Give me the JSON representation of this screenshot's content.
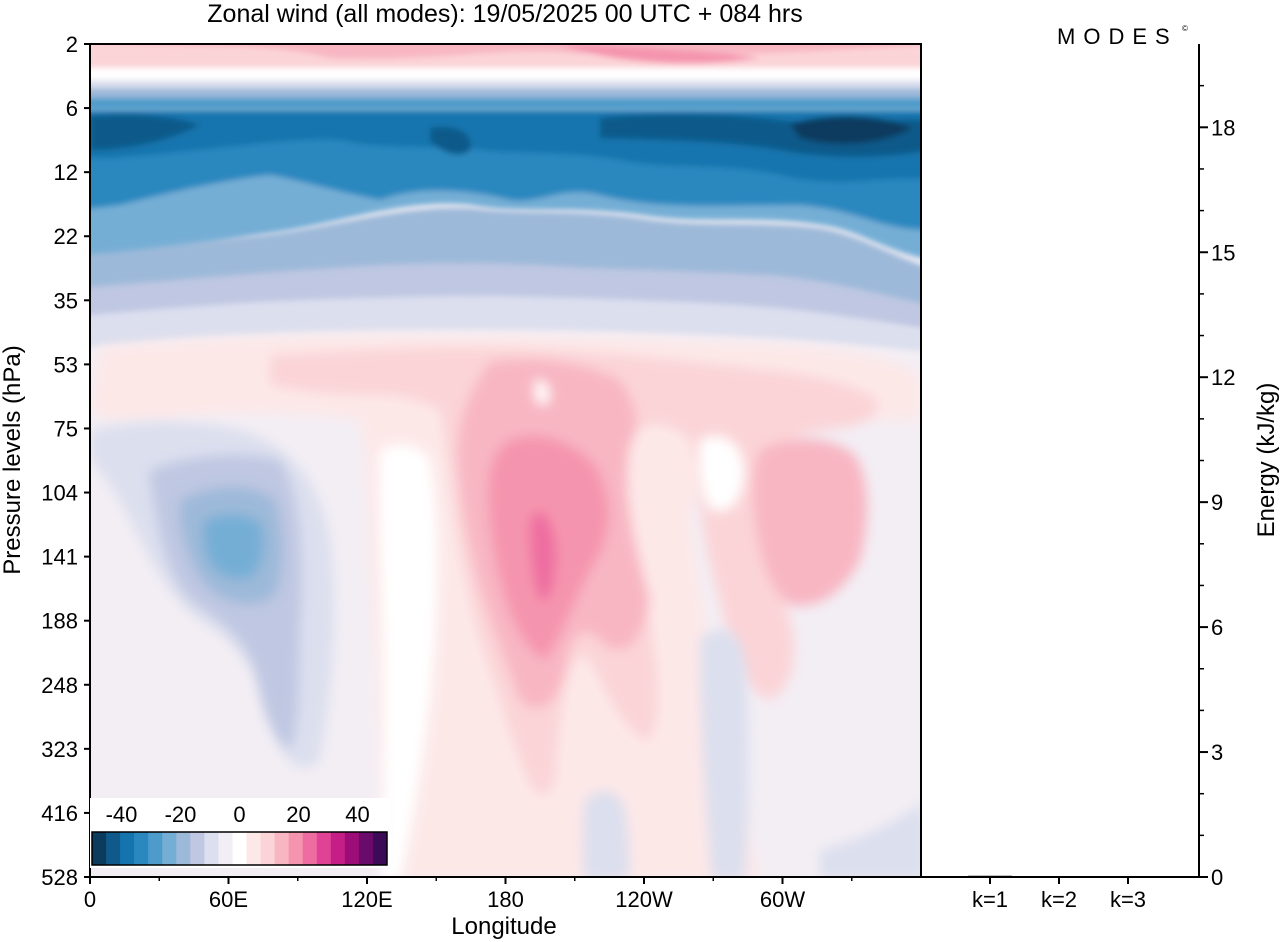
{
  "header": {
    "title": "Zonal wind (all modes):  19/05/2025  00 UTC  + 084 hrs",
    "logo_text": "MODES",
    "logo_mark": "©"
  },
  "chart_data": [
    {
      "type": "heatmap",
      "variable": "zonal wind",
      "title": "Zonal wind (all modes):  19/05/2025  00 UTC  + 084 hrs",
      "xlabel": "Longitude",
      "ylabel": "Pressure levels (hPa)",
      "x_ticks": [
        "0",
        "60E",
        "120E",
        "180",
        "120W",
        "60W"
      ],
      "x_tick_degrees_east": [
        0,
        60,
        120,
        180,
        240,
        300
      ],
      "xlim_degrees_east": [
        0,
        360
      ],
      "y_ticks": [
        "2",
        "6",
        "12",
        "22",
        "35",
        "53",
        "75",
        "104",
        "141",
        "188",
        "248",
        "323",
        "416",
        "528"
      ],
      "colorbar": {
        "labels": [
          "-40",
          "-20",
          "0",
          "20",
          "40"
        ],
        "levels": [
          -45,
          -40,
          -35,
          -30,
          -25,
          -20,
          -15,
          -10,
          -5,
          0,
          5,
          10,
          15,
          20,
          25,
          30,
          35,
          40,
          45
        ],
        "colors": [
          "#0d3b5e",
          "#0f5a8a",
          "#1574ae",
          "#2a88bf",
          "#4d9bcb",
          "#75aed5",
          "#9db9d9",
          "#bfc7e2",
          "#dcdfee",
          "#f1eef5",
          "#ffffff",
          "#fde8e8",
          "#fbd4d7",
          "#f8b6c2",
          "#f594ae",
          "#ee6da0",
          "#e04395",
          "#c51e86",
          "#9c0d78",
          "#6a0a6a",
          "#3d0a57"
        ]
      },
      "features": [
        {
          "name": "westward jet core",
          "pressure_hPa": [
            6,
            16
          ],
          "u_ms": -40
        },
        {
          "name": "eastward upper layer",
          "pressure_hPa": [
            2,
            3
          ],
          "u_ms": 15
        },
        {
          "name": "dateline eastward max",
          "lon": "180-165W",
          "pressure_hPa": 141,
          "u_ms": 25
        },
        {
          "name": "western easterly min",
          "lon": "30E-60E",
          "pressure_hPa": 141,
          "u_ms": -25
        }
      ]
    },
    {
      "type": "bar",
      "title": "",
      "xlabel": "",
      "ylabel": "Energy (kJ/kg)",
      "categories": [
        "k=1",
        "k=2",
        "k=3"
      ],
      "values": [
        0.03,
        0.02,
        0.02
      ],
      "ylim": [
        0,
        20
      ],
      "y_ticks": [
        "0",
        "3",
        "6",
        "9",
        "12",
        "15",
        "18"
      ],
      "y_tick_values": [
        0,
        3,
        6,
        9,
        12,
        15,
        18
      ],
      "bar_color": "#000000"
    }
  ]
}
